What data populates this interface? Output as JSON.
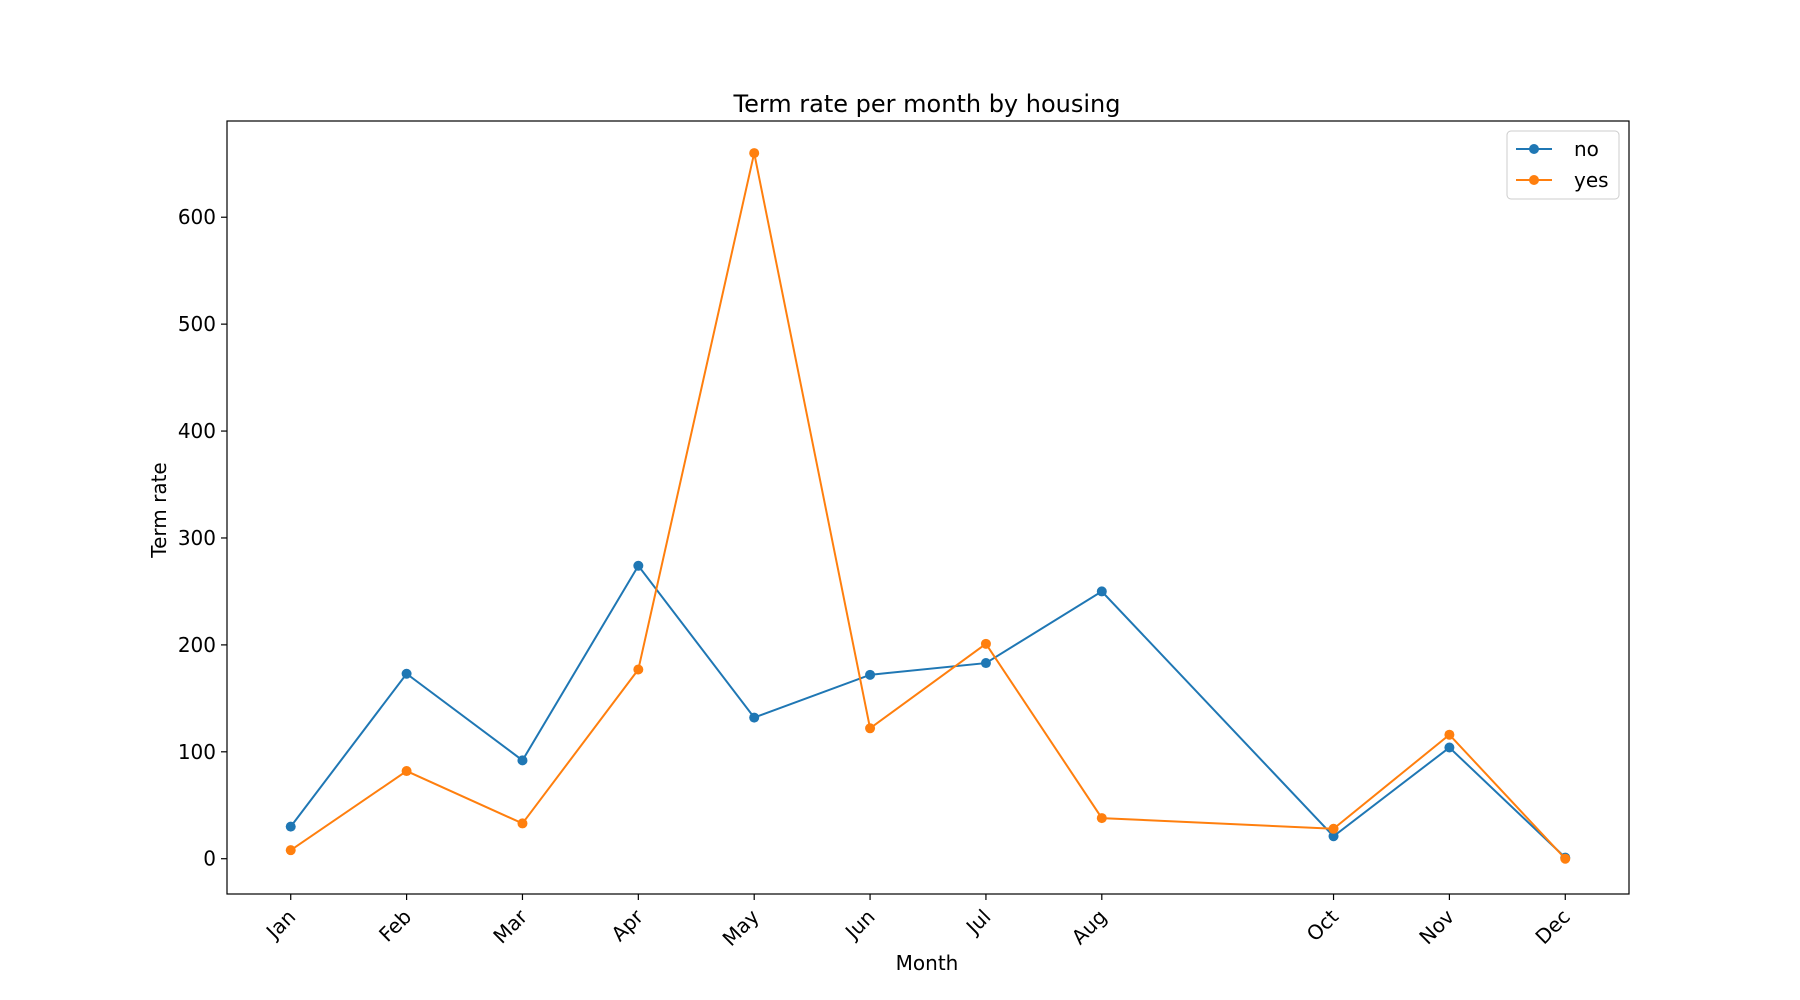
{
  "chart_data": {
    "type": "line",
    "title": "Term rate per month by housing",
    "xlabel": "Month",
    "ylabel": "Term rate",
    "x_ticks": [
      "Jan",
      "Feb",
      "Mar",
      "Apr",
      "May",
      "Jun",
      "Jul",
      "Aug",
      "Oct",
      "Nov",
      "Dec"
    ],
    "x_values": [
      1,
      2,
      3,
      4,
      5,
      6,
      7,
      8,
      10,
      11,
      12
    ],
    "xlim": [
      0.45,
      12.55
    ],
    "ylim": [
      -33,
      690
    ],
    "y_ticks": [
      0,
      100,
      200,
      300,
      400,
      500,
      600
    ],
    "grid": false,
    "legend_position": "top-right",
    "series": [
      {
        "name": "no",
        "color": "#1f77b4",
        "values": [
          30,
          173,
          92,
          274,
          132,
          172,
          183,
          250,
          21,
          104,
          1
        ]
      },
      {
        "name": "yes",
        "color": "#ff7f0e",
        "values": [
          8,
          82,
          33,
          177,
          660,
          122,
          201,
          38,
          28,
          116,
          0
        ]
      }
    ]
  }
}
